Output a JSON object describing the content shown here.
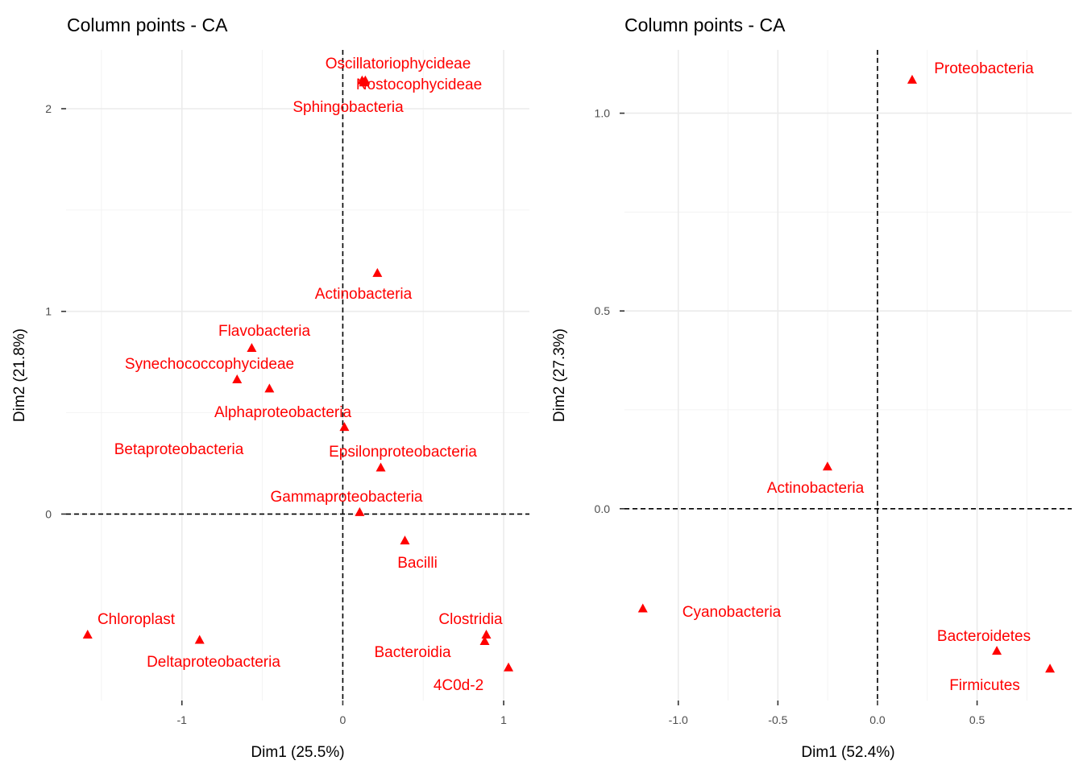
{
  "chart_data": [
    {
      "type": "scatter",
      "title": "Column points - CA",
      "xlabel": "Dim1 (25.5%)",
      "ylabel": "Dim2 (21.8%)",
      "xlim": [
        -1.72,
        1.16
      ],
      "ylim": [
        -0.92,
        2.29
      ],
      "xticks": [
        -1,
        0,
        1
      ],
      "xtick_labels": [
        "-1",
        "0",
        "1"
      ],
      "yticks": [
        0,
        1,
        2
      ],
      "ytick_labels": [
        "0",
        "1",
        "2"
      ],
      "xminor": [
        -1.5,
        -0.5,
        0.5
      ],
      "yminor": [
        0.5,
        1.5
      ],
      "grid": true,
      "marker_color": "#ff0000",
      "points": [
        {
          "label": "Oscillatoriophycideae",
          "x": 0.12,
          "y": 2.14
        },
        {
          "label": "Nostocophycideae",
          "x": 0.14,
          "y": 2.14
        },
        {
          "label": "Sphingobacteria",
          "x": 0.13,
          "y": 2.13
        },
        {
          "label": "Actinobacteria",
          "x": 0.215,
          "y": 1.19
        },
        {
          "label": "Flavobacteria",
          "x": -0.566,
          "y": 0.82
        },
        {
          "label": "Synechococcophycideae",
          "x": -0.657,
          "y": 0.665
        },
        {
          "label": "Alphaproteobacteria",
          "x": -0.456,
          "y": 0.62
        },
        {
          "label": "Betaproteobacteria",
          "x": 0.01,
          "y": 0.43
        },
        {
          "label": "Epsilonproteobacteria",
          "x": 0.236,
          "y": 0.23
        },
        {
          "label": "Gammaproteobacteria",
          "x": 0.105,
          "y": 0.01
        },
        {
          "label": "Bacilli",
          "x": 0.386,
          "y": -0.13
        },
        {
          "label": "Chloroplast",
          "x": -1.586,
          "y": -0.594
        },
        {
          "label": "Deltaproteobacteria",
          "x": -0.89,
          "y": -0.62
        },
        {
          "label": "Clostridia",
          "x": 0.892,
          "y": -0.594
        },
        {
          "label": "Bacteroidia",
          "x": 0.882,
          "y": -0.626
        },
        {
          "label": "4C0d-2",
          "x": 1.03,
          "y": -0.756
        }
      ]
    },
    {
      "type": "scatter",
      "title": "Column points - CA",
      "xlabel": "Dim1 (52.4%)",
      "ylabel": "Dim2 (27.3%)",
      "xlim": [
        -1.27,
        0.975
      ],
      "ylim": [
        -0.485,
        1.16
      ],
      "xticks": [
        -1.0,
        -0.5,
        0.0,
        0.5
      ],
      "xtick_labels": [
        "-1.0",
        "-0.5",
        "0.0",
        "0.5"
      ],
      "yticks": [
        0.0,
        0.5,
        1.0
      ],
      "ytick_labels": [
        "0.0",
        "0.5",
        "1.0"
      ],
      "xminor": [
        -0.75,
        -0.25,
        0.25,
        0.75
      ],
      "yminor": [
        0.25,
        0.75
      ],
      "grid": true,
      "marker_color": "#ff0000",
      "points": [
        {
          "label": "Proteobacteria",
          "x": 0.174,
          "y": 1.085
        },
        {
          "label": "Actinobacteria",
          "x": -0.251,
          "y": 0.107
        },
        {
          "label": "Cyanobacteria",
          "x": -1.178,
          "y": -0.252
        },
        {
          "label": "Bacteroidetes",
          "x": 0.599,
          "y": -0.359
        },
        {
          "label": "Firmicutes",
          "x": 0.866,
          "y": -0.404
        }
      ]
    }
  ]
}
